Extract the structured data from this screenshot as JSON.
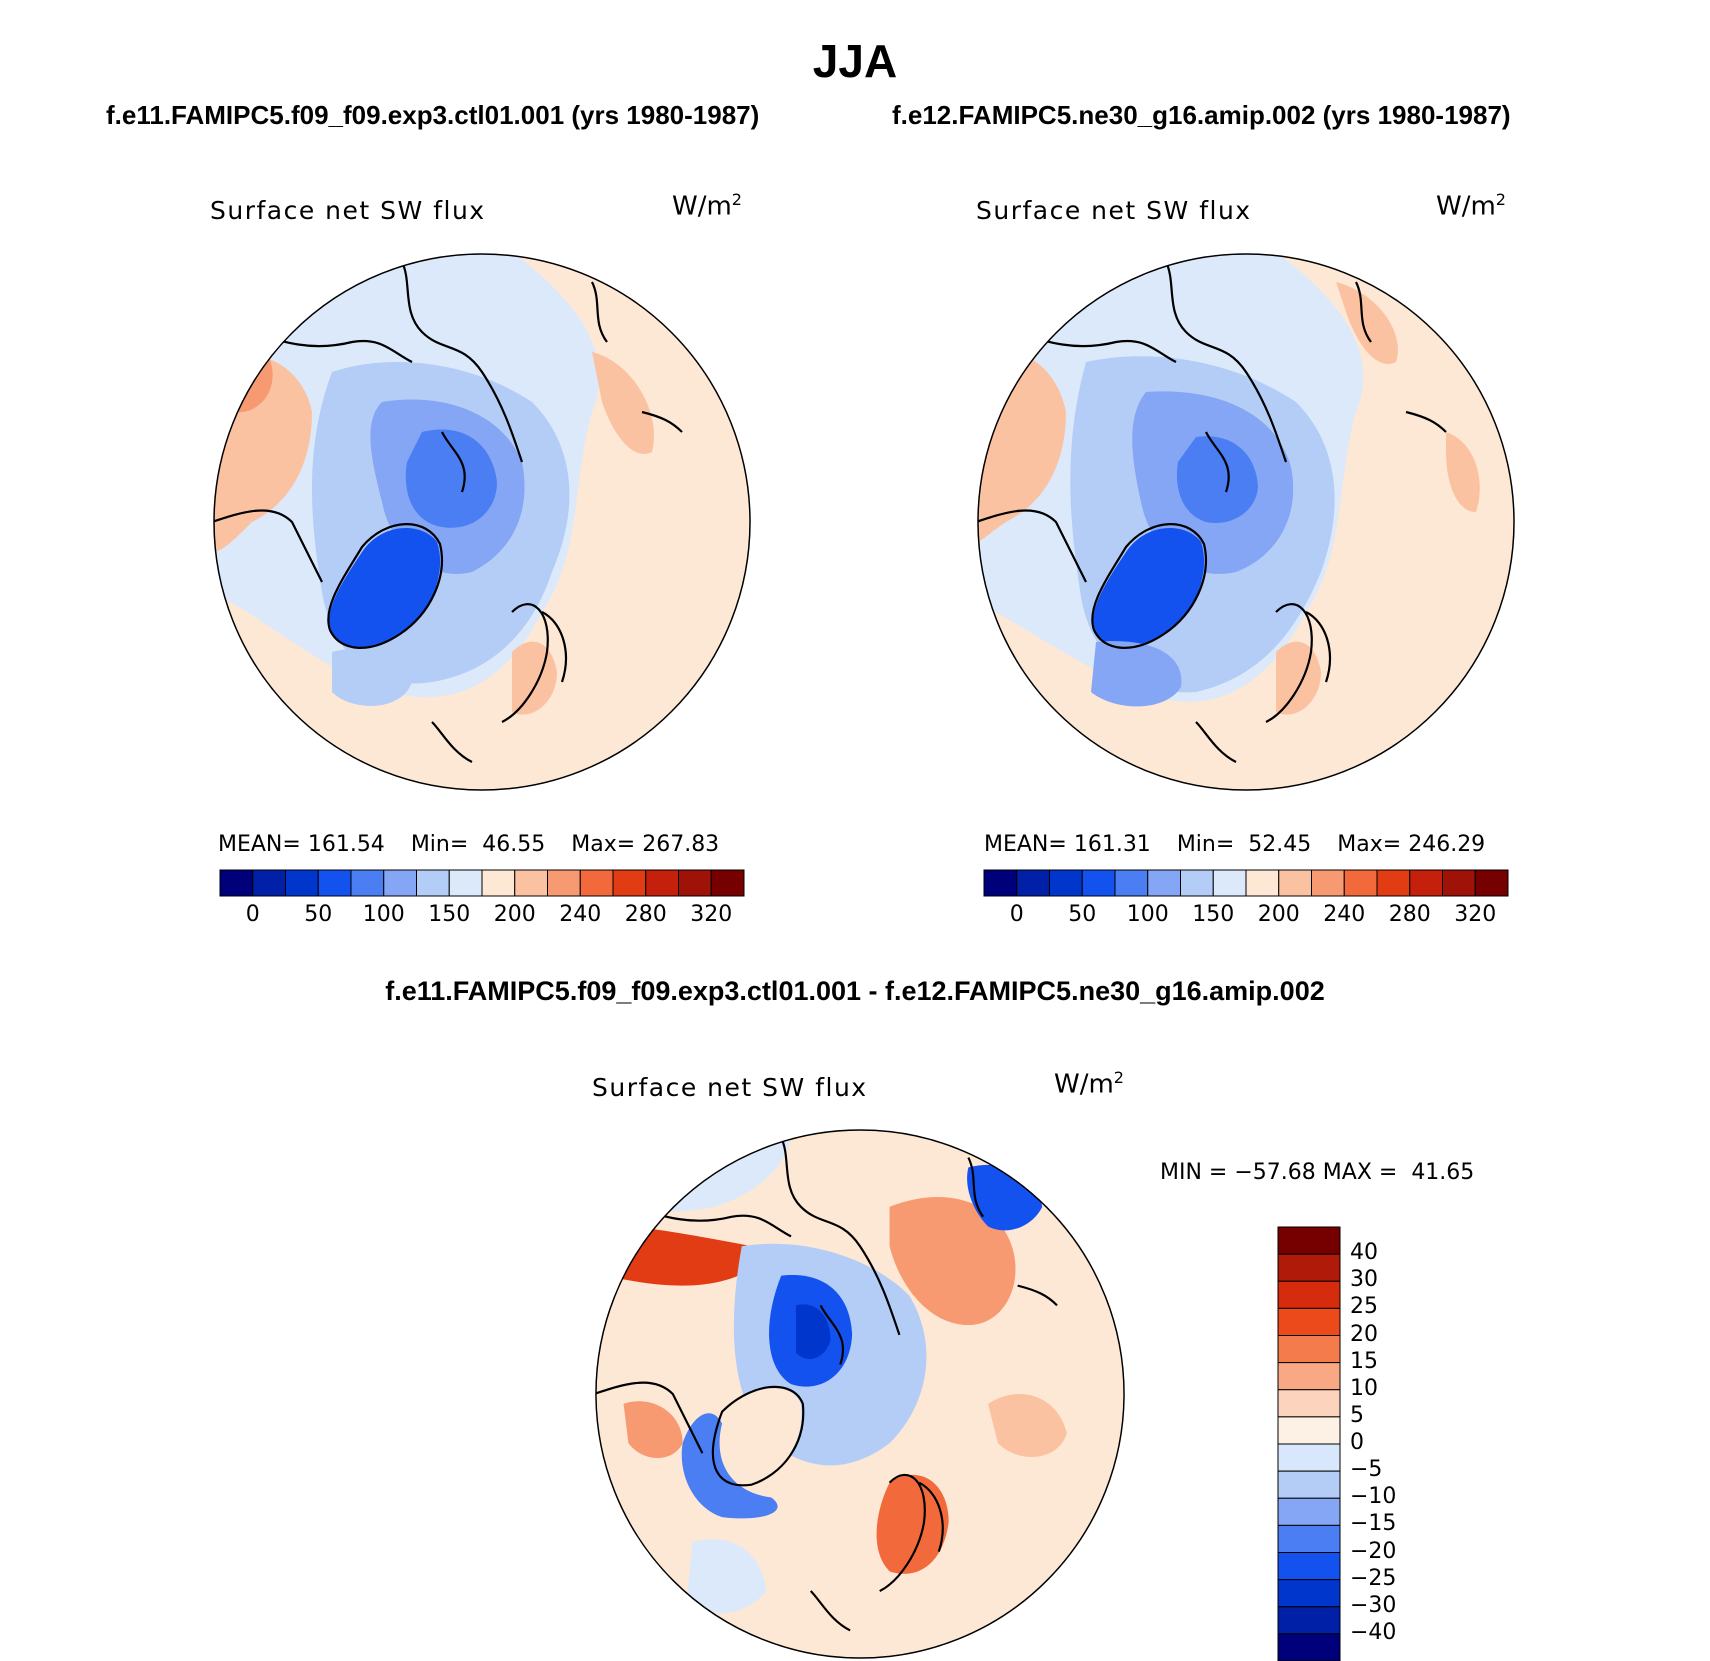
{
  "title": "JJA",
  "case1": {
    "title": "f.e11.FAMIPC5.f09_f09.exp3.ctl01.001 (yrs 1980-1987)"
  },
  "case2": {
    "title": "f.e12.FAMIPC5.ne30_g16.amip.002 (yrs 1980-1987)"
  },
  "diff": {
    "title": "f.e11.FAMIPC5.f09_f09.exp3.ctl01.001 - f.e12.FAMIPC5.ne30_g16.amip.002"
  },
  "panels": [
    {
      "label": "Surface net SW flux",
      "units": "W/m",
      "units_sup": "2",
      "mean_label": "MEAN=",
      "mean": "161.54",
      "min_label": "Min=",
      "min": "46.55",
      "max_label": "Max=",
      "max": "267.83"
    },
    {
      "label": "Surface net SW flux",
      "units": "W/m",
      "units_sup": "2",
      "mean_label": "MEAN=",
      "mean": "161.31",
      "min_label": "Min=",
      "min": "52.45",
      "max_label": "Max=",
      "max": "246.29"
    },
    {
      "label": "Surface net SW flux",
      "units": "W/m",
      "units_sup": "2",
      "min_label": "MIN =",
      "min": "−57.68",
      "max_label": "MAX =",
      "max": "41.65"
    }
  ],
  "colorbar_abs": {
    "colors": [
      "#00007a",
      "#0020a8",
      "#0036cc",
      "#1452f0",
      "#4a7ef2",
      "#84a6f4",
      "#b4cdf7",
      "#dbe9fb",
      "#fde8d6",
      "#fbc2a2",
      "#f79a72",
      "#f26a3c",
      "#e23c14",
      "#c4200c",
      "#9e1208",
      "#760000"
    ],
    "ticks": [
      "0",
      "50",
      "100",
      "150",
      "200",
      "240",
      "280",
      "320"
    ]
  },
  "colorbar_diff": {
    "colors": [
      "#760000",
      "#b01a08",
      "#d42c0c",
      "#ec4a1a",
      "#f47c4c",
      "#f9a884",
      "#fcd4bd",
      "#fdf1e6",
      "#d8e7fb",
      "#b4cdf7",
      "#84a6f4",
      "#4a7ef2",
      "#1452f0",
      "#0036cc",
      "#0020a8",
      "#00007a"
    ],
    "ticks": [
      "40",
      "30",
      "25",
      "20",
      "15",
      "10",
      "5",
      "0",
      "−5",
      "−10",
      "−15",
      "−20",
      "−25",
      "−30",
      "−40"
    ]
  },
  "map_colors": {
    "ocean_base": "#dbe9fb",
    "warm": "#fde8d6",
    "warm2": "#fbc2a2",
    "warm3": "#f79a72",
    "cool1": "#b4cdf7",
    "cool2": "#84a6f4",
    "cool3": "#4a7ef2",
    "cool4": "#1452f0",
    "red": "#e23c14",
    "deep": "#0036cc"
  }
}
